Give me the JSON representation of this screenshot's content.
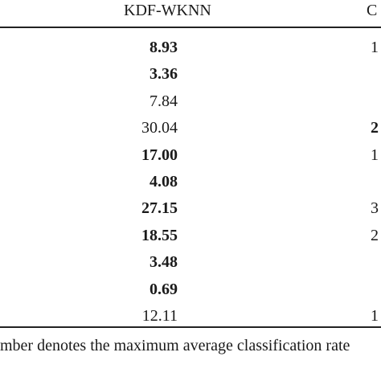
{
  "table": {
    "headers": {
      "col1": "KDF-WKNN",
      "col2": "C"
    },
    "rows": [
      {
        "kdf": "8.93",
        "kdf_bold": true,
        "next": "1",
        "next_bold": false
      },
      {
        "kdf": "3.36",
        "kdf_bold": true,
        "next": "",
        "next_bold": false
      },
      {
        "kdf": "7.84",
        "kdf_bold": false,
        "next": "",
        "next_bold": false
      },
      {
        "kdf": "30.04",
        "kdf_bold": false,
        "next": "2",
        "next_bold": true
      },
      {
        "kdf": "17.00",
        "kdf_bold": true,
        "next": "1",
        "next_bold": false
      },
      {
        "kdf": "4.08",
        "kdf_bold": true,
        "next": "",
        "next_bold": false
      },
      {
        "kdf": "27.15",
        "kdf_bold": true,
        "next": "3",
        "next_bold": false
      },
      {
        "kdf": "18.55",
        "kdf_bold": true,
        "next": "2",
        "next_bold": false
      },
      {
        "kdf": "3.48",
        "kdf_bold": true,
        "next": "",
        "next_bold": false
      },
      {
        "kdf": "0.69",
        "kdf_bold": true,
        "next": "",
        "next_bold": false
      },
      {
        "kdf": "12.11",
        "kdf_bold": false,
        "next": "1",
        "next_bold": false
      }
    ],
    "footnote": "mber denotes the maximum average classification rate"
  }
}
